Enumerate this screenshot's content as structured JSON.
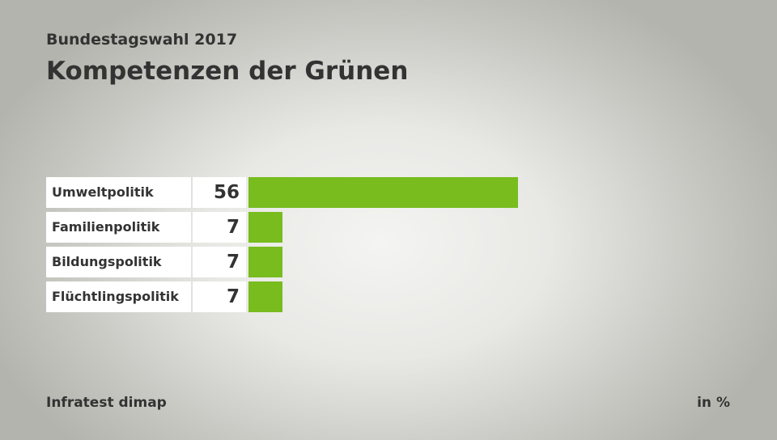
{
  "chart_data": {
    "type": "bar",
    "orientation": "horizontal",
    "subtitle": "Bundestagswahl 2017",
    "title": "Kompetenzen der Grünen",
    "categories": [
      "Umweltpolitik",
      "Familienpolitik",
      "Bildungspolitik",
      "Flüchtlingspolitik"
    ],
    "values": [
      56,
      7,
      7,
      7
    ],
    "value_labels": [
      "56",
      "7",
      "7",
      "7"
    ],
    "unit": "in %",
    "source": "Infratest dimap",
    "bar_color": "#78bc1e",
    "xlim": [
      0,
      56
    ]
  }
}
